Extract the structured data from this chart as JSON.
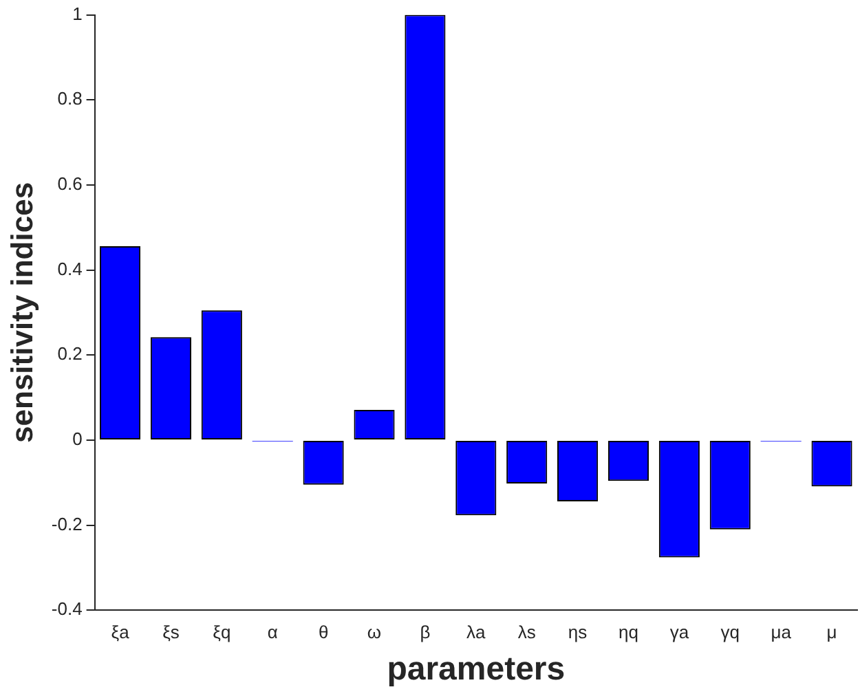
{
  "chart_data": {
    "type": "bar",
    "xlabel": "parameters",
    "ylabel": "sensitivity indices",
    "categories": [
      "ξa",
      "ξs",
      "ξq",
      "α",
      "θ",
      "ω",
      "β",
      "λa",
      "λs",
      "ηs",
      "ηq",
      "γa",
      "γq",
      "μa",
      "μ"
    ],
    "values": [
      0.456,
      0.242,
      0.305,
      -0.003,
      -0.105,
      0.071,
      1,
      -0.177,
      -0.102,
      -0.144,
      -0.096,
      -0.276,
      -0.21,
      -0.003,
      -0.109
    ],
    "color": "#0000ff",
    "ylim": [
      -0.4,
      1
    ],
    "yticks": [
      -0.4,
      -0.2,
      0,
      0.2,
      0.4,
      0.6,
      0.8,
      1
    ],
    "grid": false,
    "legend": false
  }
}
